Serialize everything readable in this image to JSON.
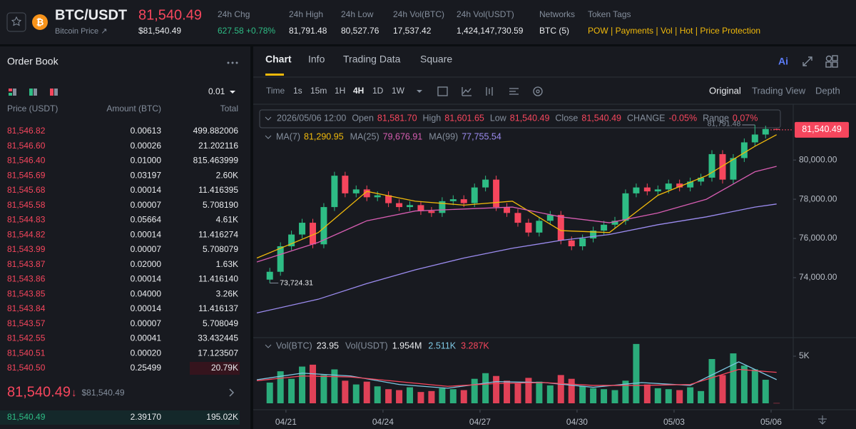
{
  "header": {
    "symbol": "BTC/USDT",
    "subtitle": "Bitcoin Price ↗",
    "price": "81,540.49",
    "price_usd": "$81,540.49",
    "stats": [
      {
        "label": "24h Chg",
        "value": "627.58 +0.78%"
      },
      {
        "label": "24h High",
        "value": "81,791.48"
      },
      {
        "label": "24h Low",
        "value": "80,527.76"
      },
      {
        "label": "24h Vol(BTC)",
        "value": "17,537.42"
      },
      {
        "label": "24h Vol(USDT)",
        "value": "1,424,147,730.59"
      },
      {
        "label": "Networks",
        "value": "BTC (5)"
      }
    ],
    "token_tags": {
      "label": "Token Tags",
      "tags": [
        "POW",
        "Payments",
        "Vol",
        "Hot",
        "Price Protection"
      ]
    }
  },
  "order_book": {
    "title": "Order Book",
    "tick_size": "0.01",
    "columns": [
      "Price (USDT)",
      "Amount (BTC)",
      "Total"
    ],
    "asks": [
      [
        "81,546.82",
        "0.00613",
        "499.882006"
      ],
      [
        "81,546.60",
        "0.00026",
        "21.202116"
      ],
      [
        "81,546.40",
        "0.01000",
        "815.463999"
      ],
      [
        "81,545.69",
        "0.03197",
        "2.60K"
      ],
      [
        "81,545.68",
        "0.00014",
        "11.416395"
      ],
      [
        "81,545.58",
        "0.00007",
        "5.708190"
      ],
      [
        "81,544.83",
        "0.05664",
        "4.61K"
      ],
      [
        "81,544.82",
        "0.00014",
        "11.416274"
      ],
      [
        "81,543.99",
        "0.00007",
        "5.708079"
      ],
      [
        "81,543.87",
        "0.02000",
        "1.63K"
      ],
      [
        "81,543.86",
        "0.00014",
        "11.416140"
      ],
      [
        "81,543.85",
        "0.04000",
        "3.26K"
      ],
      [
        "81,543.84",
        "0.00014",
        "11.416137"
      ],
      [
        "81,543.57",
        "0.00007",
        "5.708049"
      ],
      [
        "81,542.55",
        "0.00041",
        "33.432445"
      ],
      [
        "81,540.51",
        "0.00020",
        "17.123507"
      ],
      [
        "81,540.50",
        "0.25499",
        "20.79K"
      ]
    ],
    "last_price": "81,540.49",
    "direction": "↓",
    "last_price_usd": "$81,540.49",
    "bids": [
      [
        "81,540.49",
        "2.39170",
        "195.02K"
      ]
    ]
  },
  "chart_panel": {
    "tabs": [
      "Chart",
      "Info",
      "Trading Data",
      "Square"
    ],
    "ai": "Ai",
    "intervals": [
      "Time",
      "1s",
      "15m",
      "1H",
      "4H",
      "1D",
      "1W"
    ],
    "views": [
      "Original",
      "Trading View",
      "Depth"
    ],
    "info_bar": {
      "time": "2026/05/06 12:00",
      "fields": [
        {
          "label": "Open",
          "value": "81,581.70"
        },
        {
          "label": "High",
          "value": "81,601.65"
        },
        {
          "label": "Low",
          "value": "81,540.49"
        },
        {
          "label": "Close",
          "value": "81,540.49"
        },
        {
          "label": "CHANGE",
          "value": "-0.05%"
        },
        {
          "label": "Range",
          "value": "0.07%"
        }
      ]
    }
  },
  "chart_data": {
    "type": "candlestick",
    "up_color": "#2ebd85",
    "down_color": "#f6465d",
    "x": [
      -0.5,
      -0.17,
      0.17,
      0.5,
      0.83,
      1.17,
      1.5,
      1.83,
      2.17,
      2.5,
      2.83,
      3.17,
      3.5,
      3.83,
      4.17,
      4.5,
      4.83,
      5.17,
      5.5,
      5.83,
      6.17,
      6.5,
      6.83,
      7.17,
      7.5,
      7.83,
      8.17,
      8.5,
      8.83,
      9.17,
      9.5,
      9.83,
      10.17,
      10.5,
      10.83,
      11.17,
      11.5,
      11.83,
      12.17,
      12.5,
      12.83,
      13.17,
      13.5,
      13.83,
      14.17,
      14.5,
      14.83,
      15.17
    ],
    "open": [
      73900,
      74300,
      75600,
      76200,
      76800,
      75700,
      77600,
      79200,
      78300,
      78500,
      78100,
      78200,
      77800,
      77600,
      77700,
      77400,
      77300,
      77900,
      78000,
      77800,
      78600,
      79000,
      77600,
      77300,
      76800,
      76300,
      76900,
      77200,
      75900,
      75600,
      76000,
      76400,
      76700,
      76900,
      78300,
      78600,
      78400,
      78500,
      78800,
      78600,
      78900,
      79100,
      80300,
      79000,
      80100,
      80900,
      81300,
      81581.7
    ],
    "high": [
      74500,
      75800,
      76400,
      77000,
      77000,
      77800,
      79400,
      79400,
      78700,
      78700,
      78400,
      78400,
      78000,
      77900,
      77900,
      77600,
      78100,
      78200,
      78200,
      78800,
      79200,
      79200,
      77800,
      77500,
      77000,
      77100,
      77400,
      77400,
      76100,
      76200,
      76600,
      76900,
      77100,
      78500,
      78800,
      78800,
      78700,
      79000,
      79000,
      79100,
      79300,
      80500,
      80500,
      80300,
      81100,
      81791.48,
      81750,
      81601.65
    ],
    "low": [
      73724.31,
      74100,
      75400,
      76000,
      75500,
      75500,
      77400,
      78100,
      78100,
      77900,
      77900,
      77600,
      77400,
      77400,
      77200,
      77100,
      77100,
      77700,
      77600,
      77600,
      78400,
      77400,
      77100,
      76600,
      76100,
      76100,
      76700,
      75700,
      75400,
      75400,
      75800,
      76200,
      76500,
      76700,
      78100,
      78200,
      78200,
      78300,
      78400,
      78400,
      78700,
      78900,
      78800,
      78800,
      79900,
      80700,
      81100,
      81540.49
    ],
    "close": [
      74300,
      75600,
      76200,
      76800,
      75700,
      77600,
      79200,
      78300,
      78500,
      78100,
      78200,
      77800,
      77600,
      77700,
      77400,
      77300,
      77900,
      78000,
      77800,
      78600,
      79000,
      77600,
      77300,
      76800,
      76300,
      76900,
      77200,
      75900,
      75600,
      76000,
      76400,
      76700,
      76900,
      78300,
      78600,
      78400,
      78500,
      78800,
      78600,
      78900,
      79100,
      80300,
      79000,
      80100,
      80900,
      81300,
      81581.7,
      81540.49
    ],
    "xlim": [
      -0.99,
      15.64
    ],
    "xticks": [
      {
        "value": 0,
        "label": "04/21"
      },
      {
        "value": 3,
        "label": "04/24"
      },
      {
        "value": 6,
        "label": "04/27"
      },
      {
        "value": 9,
        "label": "04/30"
      },
      {
        "value": 12,
        "label": "05/03"
      },
      {
        "value": 15,
        "label": "05/06"
      }
    ],
    "ylim": [
      71050,
      82700
    ],
    "yticks": [
      {
        "value": 80000,
        "label": "80,000.00"
      },
      {
        "value": 78000,
        "label": "78,000.00"
      },
      {
        "value": 76000,
        "label": "76,000.00"
      },
      {
        "value": 74000,
        "label": "74,000.00"
      }
    ],
    "price_tag": {
      "value": 81540.49,
      "label": "81,540.49"
    },
    "high_label": "81,791.48",
    "low_label": "73,724.31",
    "ma": [
      {
        "name": "MA(7)",
        "last_label": "81,290.95",
        "color": "#f0b90b",
        "x": [
          -0.9,
          1,
          2.5,
          4,
          5.5,
          7,
          8.5,
          10,
          11.5,
          13,
          14.5,
          15.17
        ],
        "values": [
          75000,
          76300,
          78400,
          77900,
          77700,
          77900,
          76400,
          76300,
          78200,
          79200,
          80700,
          81290.95
        ]
      },
      {
        "name": "MA(25)",
        "last_label": "79,676.91",
        "color": "#d65db1",
        "x": [
          -0.9,
          1,
          2.5,
          4,
          5.5,
          7,
          8.5,
          10,
          11.5,
          13,
          14.5,
          15.17
        ],
        "values": [
          74800,
          75800,
          76900,
          77400,
          77500,
          77600,
          77100,
          76800,
          77300,
          78000,
          79400,
          79676.91
        ]
      },
      {
        "name": "MA(99)",
        "last_label": "77,755.54",
        "color": "#9c8cf0",
        "x": [
          -0.9,
          1,
          2.5,
          4,
          5.5,
          7,
          8.5,
          10,
          11.5,
          13,
          14.5,
          15.17
        ],
        "values": [
          72200,
          72900,
          73700,
          74400,
          75000,
          75500,
          75900,
          76200,
          76700,
          77100,
          77600,
          77755.54
        ]
      }
    ],
    "volume": {
      "name": "Vol(BTC)",
      "last_label": "23.95",
      "usdt_name": "Vol(USDT)",
      "usdt_label": "1.954M",
      "values": [
        2200,
        3400,
        2600,
        3900,
        4100,
        3000,
        3600,
        2400,
        2000,
        2300,
        1800,
        1500,
        1400,
        1700,
        1200,
        1300,
        1600,
        1500,
        1400,
        2600,
        3200,
        2900,
        2400,
        2100,
        2700,
        2300,
        1900,
        3000,
        2600,
        1800,
        1600,
        1500,
        1400,
        2400,
        6300,
        2000,
        1600,
        1500,
        1400,
        1700,
        1300,
        4700,
        3000,
        5300,
        4000,
        3600,
        2500,
        23.95
      ],
      "ylim": [
        0,
        6820
      ],
      "yticks": [
        {
          "value": 5000,
          "label": "5K"
        }
      ],
      "ma": [
        {
          "last_label": "2.511K",
          "color": "#7ec8e3",
          "x": [
            -0.9,
            0.5,
            2,
            3.5,
            5,
            6.5,
            8,
            9.5,
            11,
            12.5,
            14,
            15.17
          ],
          "values": [
            2500,
            3200,
            2900,
            2000,
            1600,
            2300,
            2200,
            1700,
            2200,
            1900,
            4400,
            2511
          ]
        },
        {
          "last_label": "3.287K",
          "color": "#f6465d",
          "x": [
            -0.9,
            0.5,
            2,
            3.5,
            5,
            6.5,
            8,
            9.5,
            11,
            12.5,
            14,
            15.17
          ],
          "values": [
            2400,
            2900,
            2800,
            2300,
            1800,
            2100,
            2200,
            1900,
            1900,
            2000,
            3600,
            3287
          ]
        }
      ]
    }
  }
}
